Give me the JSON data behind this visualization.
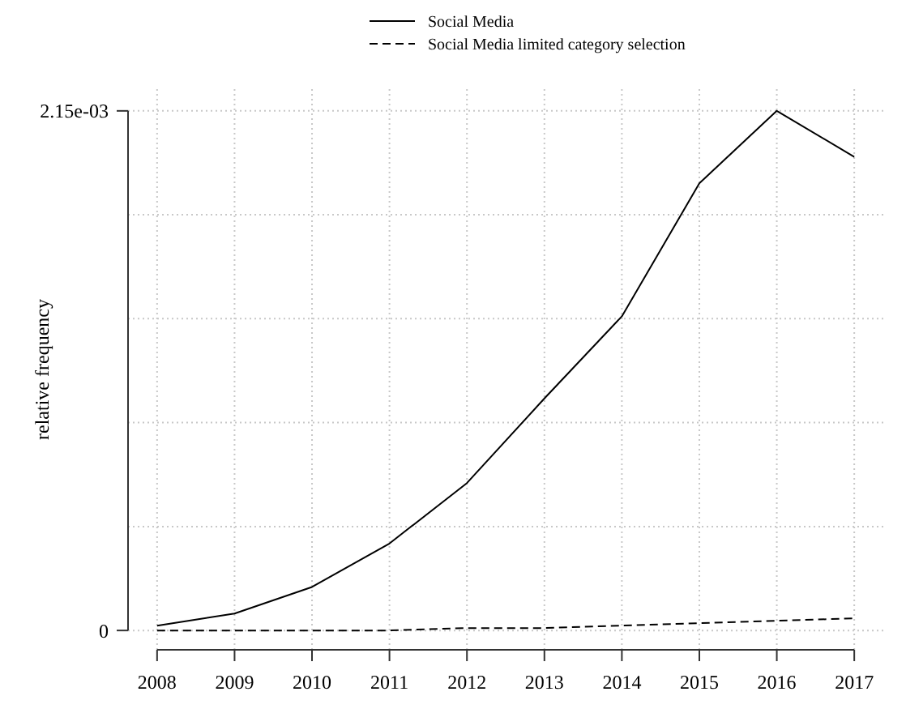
{
  "chart_data": {
    "type": "line",
    "ylabel": "relative frequency",
    "categories": [
      "2008",
      "2009",
      "2010",
      "2011",
      "2012",
      "2013",
      "2014",
      "2015",
      "2016",
      "2017"
    ],
    "series": [
      {
        "name": "Social Media",
        "color": "#000000",
        "line_style": "solid",
        "values": [
          2e-05,
          7e-05,
          0.00018,
          0.00036,
          0.00061,
          0.00096,
          0.0013,
          0.00185,
          0.00215,
          0.00196
        ]
      },
      {
        "name": "Social Media limited category selection",
        "color": "#000000",
        "line_style": "dashed",
        "values": [
          0,
          0,
          0,
          0,
          1e-05,
          1e-05,
          2e-05,
          3e-05,
          4e-05,
          5e-05
        ]
      }
    ],
    "ylim": [
      -8e-05,
      0.00224
    ],
    "yticks": [
      0,
      {
        "value": 0.00043,
        "label": null
      },
      {
        "value": 0.00086,
        "label": null
      },
      {
        "value": 0.00129,
        "label": null
      },
      {
        "value": 0.00172,
        "label": null
      },
      {
        "value": 0.00215,
        "label": "2.15e-03"
      }
    ],
    "grid": true,
    "legend": "top"
  }
}
